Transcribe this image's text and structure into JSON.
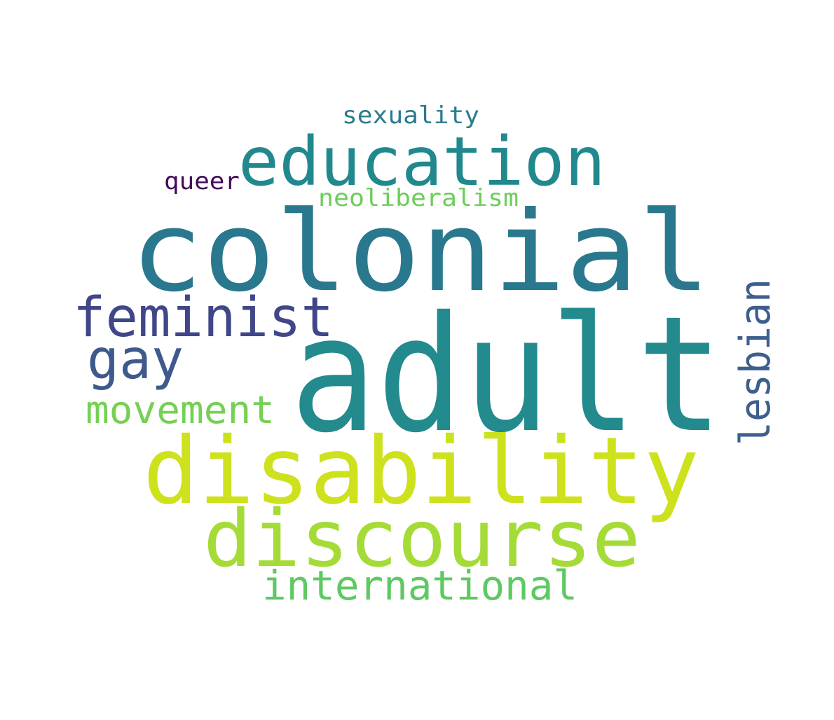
{
  "words": [
    {
      "key": "adult",
      "text": "adult",
      "color": "#238a8d"
    },
    {
      "key": "colonial",
      "text": "colonial",
      "color": "#2a788e"
    },
    {
      "key": "disability",
      "text": "disability",
      "color": "#cde11d"
    },
    {
      "key": "education",
      "text": "education",
      "color": "#21898d"
    },
    {
      "key": "discourse",
      "text": "discourse",
      "color": "#a5db36"
    },
    {
      "key": "feminist",
      "text": "feminist",
      "color": "#404688"
    },
    {
      "key": "gay",
      "text": "gay",
      "color": "#3e5a8c"
    },
    {
      "key": "international",
      "text": "international",
      "color": "#5ec962"
    },
    {
      "key": "movement",
      "text": "movement",
      "color": "#75d054"
    },
    {
      "key": "lesbian",
      "text": "lesbian",
      "color": "#3d5f8d"
    },
    {
      "key": "neoliberalism",
      "text": "neoliberalism",
      "color": "#6ccd5a"
    },
    {
      "key": "sexuality",
      "text": "sexuality",
      "color": "#2b7b8e"
    },
    {
      "key": "queer",
      "text": "queer",
      "color": "#46085c"
    }
  ]
}
